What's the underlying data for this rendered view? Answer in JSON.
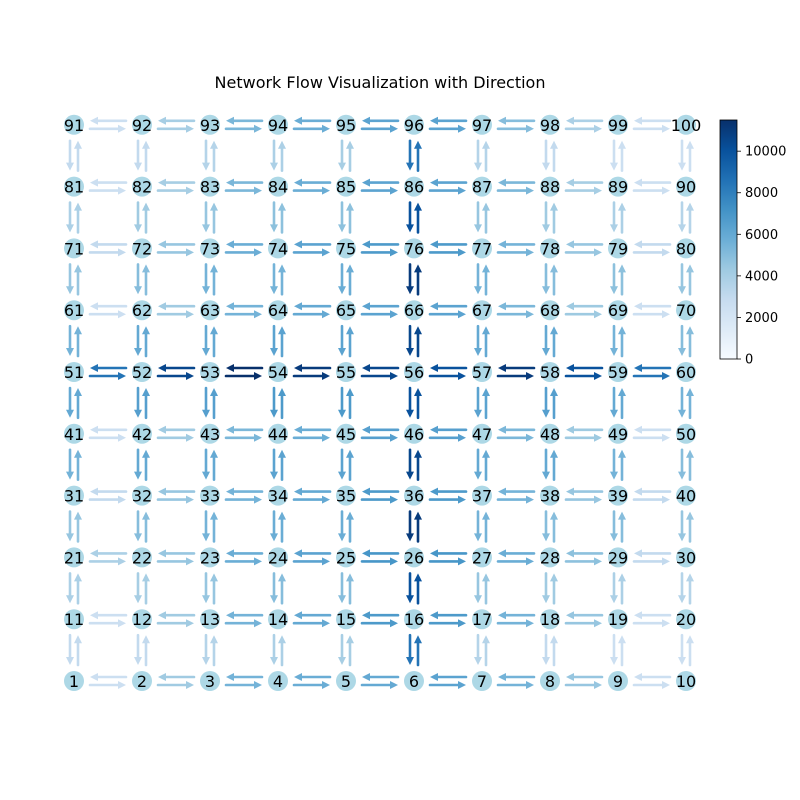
{
  "title": "Network Flow Visualization with Direction",
  "grid": {
    "rows": 10,
    "cols": 10
  },
  "node_color": "#add8e6",
  "colorbar": {
    "min": 0,
    "max": 11500,
    "ticks": [
      0,
      2000,
      4000,
      6000,
      8000,
      10000
    ],
    "colormap": [
      "#f7fbff",
      "#deebf7",
      "#c6dbef",
      "#9ecae1",
      "#6baed6",
      "#4292c6",
      "#2171b5",
      "#08519c",
      "#08306b"
    ]
  },
  "nodes": [
    "1",
    "2",
    "3",
    "4",
    "5",
    "6",
    "7",
    "8",
    "9",
    "10",
    "11",
    "12",
    "13",
    "14",
    "15",
    "16",
    "17",
    "18",
    "19",
    "20",
    "21",
    "22",
    "23",
    "24",
    "25",
    "26",
    "27",
    "28",
    "29",
    "30",
    "31",
    "32",
    "33",
    "34",
    "35",
    "36",
    "37",
    "38",
    "39",
    "40",
    "41",
    "42",
    "43",
    "44",
    "45",
    "46",
    "47",
    "48",
    "49",
    "50",
    "51",
    "52",
    "53",
    "54",
    "55",
    "56",
    "57",
    "58",
    "59",
    "60",
    "61",
    "62",
    "63",
    "64",
    "65",
    "66",
    "67",
    "68",
    "69",
    "70",
    "71",
    "72",
    "73",
    "74",
    "75",
    "76",
    "77",
    "78",
    "79",
    "80",
    "81",
    "82",
    "83",
    "84",
    "85",
    "86",
    "87",
    "88",
    "89",
    "90",
    "91",
    "92",
    "93",
    "94",
    "95",
    "96",
    "97",
    "98",
    "99",
    "100"
  ],
  "horizontal_rows": [
    {
      "row": 1,
      "flows": [
        2500,
        4200,
        5500,
        5800,
        6000,
        6300,
        5500,
        4500,
        2500
      ]
    },
    {
      "row": 2,
      "flows": [
        2500,
        4200,
        5500,
        6000,
        6800,
        6800,
        5500,
        4500,
        2500
      ]
    },
    {
      "row": 3,
      "flows": [
        3800,
        4500,
        5800,
        6300,
        7000,
        7000,
        5800,
        4800,
        3000
      ]
    },
    {
      "row": 4,
      "flows": [
        3000,
        4500,
        5500,
        6000,
        6800,
        6800,
        5500,
        4500,
        3000
      ]
    },
    {
      "row": 5,
      "flows": [
        2500,
        4200,
        5300,
        5800,
        6500,
        6500,
        5300,
        4300,
        2500
      ]
    },
    {
      "row": 6,
      "flows": [
        8500,
        10500,
        11500,
        11000,
        10500,
        10000,
        11000,
        10000,
        8500
      ]
    },
    {
      "row": 7,
      "flows": [
        2500,
        4200,
        5500,
        6000,
        6300,
        6300,
        5300,
        4300,
        2500
      ]
    },
    {
      "row": 8,
      "flows": [
        3000,
        4500,
        5800,
        6300,
        6800,
        6800,
        5500,
        4500,
        3000
      ]
    },
    {
      "row": 9,
      "flows": [
        2500,
        4000,
        5300,
        5800,
        6300,
        6300,
        5300,
        4000,
        2500
      ]
    },
    {
      "row": 10,
      "flows": [
        2500,
        4000,
        5300,
        5800,
        6300,
        6300,
        5000,
        3800,
        2500
      ]
    }
  ],
  "vertical_cols": [
    {
      "col": 1,
      "flows": [
        3000,
        3800,
        4500,
        5500,
        6000,
        5500,
        4500,
        3800,
        3000
      ]
    },
    {
      "col": 2,
      "flows": [
        3000,
        4000,
        5000,
        6000,
        6500,
        6000,
        5000,
        4200,
        3000
      ]
    },
    {
      "col": 3,
      "flows": [
        3500,
        4500,
        5500,
        6000,
        6500,
        6000,
        5500,
        4500,
        3500
      ]
    },
    {
      "col": 4,
      "flows": [
        3800,
        5000,
        5800,
        6300,
        6800,
        6300,
        5500,
        4800,
        3800
      ]
    },
    {
      "col": 5,
      "flows": [
        4000,
        5000,
        5800,
        6300,
        6800,
        6300,
        5800,
        4800,
        4000
      ]
    },
    {
      "col": 6,
      "flows": [
        8500,
        10000,
        11000,
        10500,
        10000,
        10500,
        11000,
        10000,
        8500
      ]
    },
    {
      "col": 7,
      "flows": [
        3500,
        4500,
        5500,
        6000,
        6300,
        6000,
        5500,
        4500,
        3500
      ]
    },
    {
      "col": 8,
      "flows": [
        3000,
        4200,
        5000,
        6000,
        6500,
        6000,
        5000,
        4200,
        3000
      ]
    },
    {
      "col": 9,
      "flows": [
        2500,
        3800,
        5000,
        5500,
        6000,
        5500,
        4800,
        3800,
        2500
      ]
    },
    {
      "col": 10,
      "flows": [
        2500,
        3500,
        4500,
        5000,
        5500,
        5000,
        4500,
        3500,
        2500
      ]
    }
  ]
}
